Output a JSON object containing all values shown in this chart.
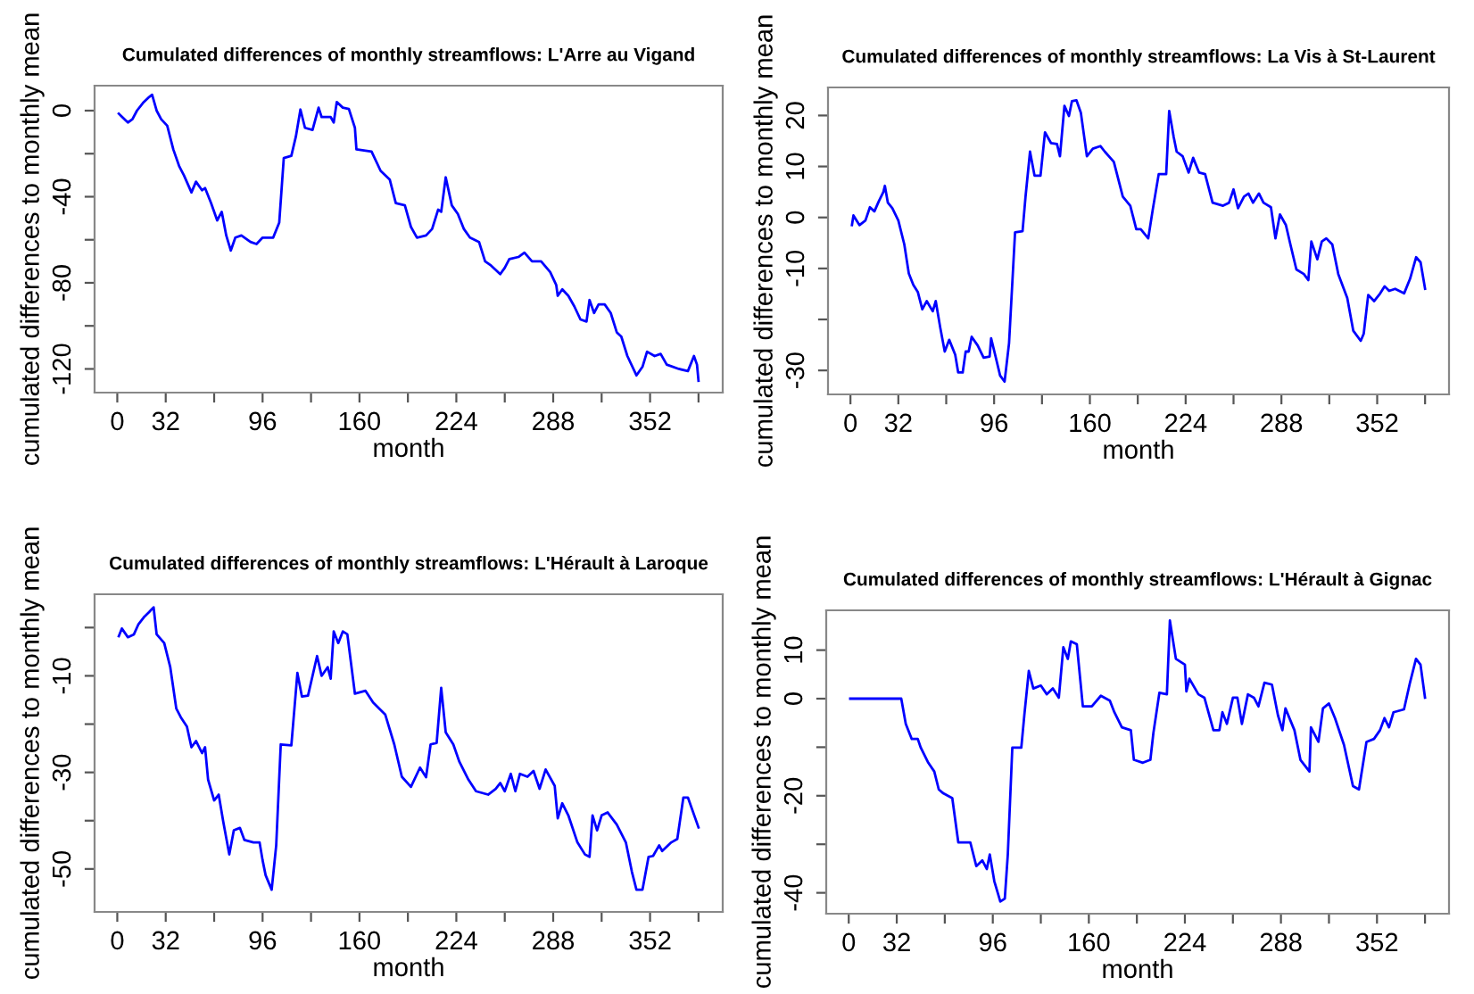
{
  "chart_data": [
    {
      "type": "line",
      "title": "Cumulated differences of monthly streamflows: L'Arre au Vigand",
      "xlabel": "month",
      "ylabel": "cumulated differences to monthly mean",
      "xlim": [
        -15,
        400
      ],
      "ylim": [
        -131,
        11.6
      ],
      "xticks": [
        0,
        32,
        {
          "value": 64,
          "label": null
        },
        96,
        {
          "value": 128,
          "label": null
        },
        160,
        {
          "value": 192,
          "label": null
        },
        224,
        {
          "value": 256,
          "label": null
        },
        288,
        {
          "value": 320,
          "label": null
        },
        352,
        {
          "value": 384,
          "label": null
        }
      ],
      "yticks": [
        0,
        {
          "value": -20,
          "label": null
        },
        -40,
        {
          "value": -60,
          "label": null
        },
        -80,
        {
          "value": -100,
          "label": null
        },
        -120
      ],
      "grid": false,
      "legend": false,
      "series": [
        {
          "color": "#0000ff",
          "x": [
            1,
            3,
            7,
            10,
            13,
            17,
            21,
            23,
            26,
            29,
            33,
            37,
            41,
            44,
            49,
            52,
            56,
            58,
            62,
            66,
            69,
            72,
            75,
            78,
            82,
            88,
            92,
            96,
            103,
            107,
            110,
            115,
            118,
            121,
            124,
            129,
            133,
            135,
            141,
            143,
            145,
            149,
            153,
            157,
            158,
            168,
            174,
            180,
            184,
            190,
            194,
            198,
            204,
            208,
            212,
            214,
            217,
            221,
            225,
            229,
            233,
            239,
            243,
            247,
            253,
            256,
            259,
            265,
            269,
            274,
            280,
            286,
            290,
            291,
            294,
            298,
            302,
            306,
            310,
            312,
            315,
            318,
            322,
            326,
            330,
            333,
            337,
            343,
            347,
            350,
            355,
            359,
            363,
            371,
            377,
            381,
            383,
            384
          ],
          "values": [
            -1.4,
            -2.8,
            -5.5,
            -4,
            0,
            3.6,
            6.3,
            7.4,
            0,
            -4,
            -7,
            -18,
            -26,
            -30,
            -38,
            -33,
            -37,
            -36,
            -43,
            -51,
            -47,
            -58,
            -65,
            -59,
            -58,
            -61,
            -62,
            -59,
            -59,
            -52,
            -22,
            -21,
            -12,
            0.5,
            -8,
            -9,
            1.4,
            -3,
            -3,
            -5.5,
            4,
            1.4,
            0.8,
            -8,
            -18,
            -19,
            -28,
            -32,
            -43,
            -44,
            -54,
            -59,
            -58,
            -55,
            -46,
            -47,
            -31,
            -44,
            -48,
            -55,
            -59,
            -61,
            -70,
            -72,
            -76,
            -73,
            -69,
            -68,
            -66,
            -70,
            -70,
            -75,
            -81,
            -86,
            -83,
            -86,
            -91,
            -97,
            -98,
            -88,
            -94,
            -90,
            -90,
            -94,
            -103,
            -105,
            -114,
            -123,
            -119,
            -112,
            -114,
            -113,
            -118,
            -120,
            -121,
            -114,
            -118,
            -125.5
          ]
        }
      ]
    },
    {
      "type": "line",
      "title": "Cumulated differences of monthly streamflows: La Vis à St-Laurent",
      "xlabel": "month",
      "ylabel": "cumulated differences to monthly mean",
      "xlim": [
        -15,
        400
      ],
      "ylim": [
        -34.7,
        25.5
      ],
      "xticks": [
        0,
        32,
        {
          "value": 64,
          "label": null
        },
        96,
        {
          "value": 128,
          "label": null
        },
        160,
        {
          "value": 192,
          "label": null
        },
        224,
        {
          "value": 256,
          "label": null
        },
        288,
        {
          "value": 320,
          "label": null
        },
        352,
        {
          "value": 384,
          "label": null
        }
      ],
      "yticks": [
        20,
        10,
        0,
        -10,
        {
          "value": -20,
          "label": null
        },
        -30
      ],
      "grid": false,
      "legend": false,
      "series": [
        {
          "color": "#0000ff",
          "x": [
            1,
            2,
            6,
            10,
            13,
            16,
            19,
            22,
            23,
            25,
            28,
            32,
            36,
            39,
            42,
            45,
            48,
            51,
            55,
            57,
            60,
            63,
            66,
            70,
            72,
            75,
            77,
            79,
            81,
            85,
            89,
            93,
            94,
            97,
            100,
            103,
            106,
            110,
            115,
            117,
            120,
            123,
            127,
            130,
            134,
            138,
            140,
            143,
            146,
            148,
            151,
            154,
            158,
            162,
            167,
            170,
            176,
            182,
            187,
            191,
            194,
            199,
            202,
            206,
            211,
            213,
            216,
            218,
            222,
            226,
            229,
            233,
            237,
            242,
            249,
            253,
            256,
            259,
            263,
            266,
            269,
            273,
            276,
            281,
            284,
            287,
            291,
            294,
            298,
            303,
            306,
            308,
            312,
            315,
            318,
            322,
            326,
            332,
            336,
            341,
            343,
            346,
            350,
            354,
            357,
            360,
            364,
            370,
            374,
            378,
            381,
            384
          ],
          "values": [
            -1.5,
            0.4,
            -1.5,
            -0.6,
            2,
            1.2,
            3.2,
            5,
            6.2,
            2.9,
            1.8,
            -0.6,
            -5.3,
            -11,
            -13.2,
            -14.6,
            -18,
            -16.4,
            -18.4,
            -16.4,
            -21.6,
            -26.3,
            -24,
            -26.9,
            -30.4,
            -30.4,
            -26.3,
            -26.3,
            -23.4,
            -25.1,
            -27.5,
            -27.3,
            -23.7,
            -27.3,
            -31,
            -32.2,
            -24.6,
            -2.9,
            -2.7,
            4.1,
            12.9,
            8.2,
            8.2,
            16.7,
            14.6,
            14.4,
            12,
            21.9,
            19.9,
            22.8,
            23,
            20.5,
            12,
            13.5,
            14,
            12.9,
            10.9,
            4.1,
            2.3,
            -2.3,
            -2.3,
            -4.1,
            1.5,
            8.5,
            8.5,
            20.9,
            15.8,
            12.9,
            12,
            8.8,
            11.7,
            8.8,
            8.5,
            2.9,
            2.3,
            2.9,
            5.5,
            1.8,
            4.1,
            4.7,
            2.9,
            4.7,
            2.9,
            2,
            -4.1,
            0.6,
            -1.5,
            -5.3,
            -10.2,
            -11.1,
            -12.3,
            -4.7,
            -8.2,
            -4.7,
            -4.1,
            -5.3,
            -11.1,
            -15.8,
            -22.2,
            -24.2,
            -22.8,
            -15.2,
            -16.4,
            -14.9,
            -13.5,
            -14.4,
            -14,
            -14.9,
            -12,
            -7.8,
            -8.8,
            -14
          ]
        }
      ]
    },
    {
      "type": "line",
      "title": "Cumulated differences of monthly streamflows: L'Hérault à Laroque",
      "xlabel": "month",
      "ylabel": "cumulated differences to monthly mean",
      "xlim": [
        -15,
        400
      ],
      "ylim": [
        -58.9,
        6.9
      ],
      "xticks": [
        0,
        32,
        {
          "value": 64,
          "label": null
        },
        96,
        {
          "value": 128,
          "label": null
        },
        160,
        {
          "value": 192,
          "label": null
        },
        224,
        {
          "value": 256,
          "label": null
        },
        288,
        {
          "value": 320,
          "label": null
        },
        352,
        {
          "value": 384,
          "label": null
        }
      ],
      "yticks": [
        {
          "value": 0,
          "label": null
        },
        -10,
        {
          "value": -20,
          "label": null
        },
        -30,
        {
          "value": -40,
          "label": null
        },
        -50
      ],
      "grid": false,
      "legend": false,
      "series": [
        {
          "color": "#0000ff",
          "x": [
            1,
            3,
            7,
            11,
            14,
            18,
            21,
            24,
            26,
            31,
            35,
            39,
            42,
            46,
            49,
            52,
            56,
            58,
            60,
            64,
            67,
            70,
            74,
            77,
            81,
            84,
            90,
            94,
            96,
            98,
            102,
            105,
            108,
            115,
            119,
            122,
            126,
            132,
            135,
            139,
            141,
            143,
            146,
            149,
            152,
            157,
            164,
            169,
            177,
            183,
            188,
            194,
            200,
            204,
            207,
            211,
            214,
            217,
            222,
            226,
            232,
            237,
            245,
            250,
            253,
            256,
            260,
            263,
            266,
            271,
            275,
            279,
            283,
            289,
            291,
            294,
            298,
            304,
            309,
            312,
            314,
            317,
            320,
            324,
            330,
            336,
            340,
            343,
            347,
            351,
            354,
            358,
            360,
            366,
            370,
            374,
            377,
            384
          ],
          "values": [
            -1.8,
            -0.2,
            -2,
            -1.4,
            0.7,
            2.3,
            3.2,
            4.2,
            -1.4,
            -3.2,
            -8.2,
            -16.8,
            -18.6,
            -20.5,
            -24.8,
            -23.5,
            -26,
            -24.8,
            -31.5,
            -35.8,
            -34.6,
            -40.2,
            -47,
            -42,
            -41.5,
            -44,
            -44.5,
            -44.5,
            -48.2,
            -51.3,
            -54.3,
            -45.1,
            -24.2,
            -24.4,
            -9.4,
            -14.3,
            -14.1,
            -5.9,
            -10,
            -8.2,
            -10.6,
            -0.8,
            -3.2,
            -0.8,
            -1.4,
            -13.7,
            -13.1,
            -15.5,
            -18,
            -24.2,
            -30.9,
            -33,
            -29,
            -31,
            -24.2,
            -23.9,
            -12.5,
            -21.7,
            -24.2,
            -27.8,
            -31.5,
            -33.9,
            -34.6,
            -33.4,
            -32.2,
            -33.9,
            -30.3,
            -33.9,
            -30.3,
            -30.9,
            -29.7,
            -33.4,
            -29.4,
            -32.8,
            -39.5,
            -36.4,
            -38.9,
            -44.5,
            -47,
            -47.5,
            -38.9,
            -42,
            -38.9,
            -38.3,
            -40.8,
            -44.5,
            -50.6,
            -54.3,
            -54.3,
            -47.5,
            -47.3,
            -45.1,
            -46.3,
            -44.5,
            -43.8,
            -35.2,
            -35.2,
            -41.4
          ]
        }
      ]
    },
    {
      "type": "line",
      "title": "Cumulated differences of monthly streamflows: L'Hérault à Gignac",
      "xlabel": "month",
      "ylabel": "cumulated differences to monthly mean",
      "xlim": [
        -15,
        400
      ],
      "ylim": [
        -44.3,
        18.2
      ],
      "xticks": [
        0,
        32,
        {
          "value": 64,
          "label": null
        },
        96,
        {
          "value": 128,
          "label": null
        },
        160,
        {
          "value": 192,
          "label": null
        },
        224,
        {
          "value": 256,
          "label": null
        },
        288,
        {
          "value": 320,
          "label": null
        },
        352,
        {
          "value": 384,
          "label": null
        }
      ],
      "yticks": [
        10,
        0,
        {
          "value": -10,
          "label": null
        },
        -20,
        {
          "value": -30,
          "label": null
        },
        -40
      ],
      "grid": false,
      "legend": false,
      "series": [
        {
          "color": "#0000ff",
          "x": [
            1,
            35,
            38,
            42,
            46,
            48,
            53,
            57,
            60,
            63,
            69,
            73,
            81,
            85,
            89,
            92,
            94,
            97,
            101,
            104,
            106,
            109,
            115,
            117,
            120,
            123,
            128,
            132,
            136,
            140,
            143,
            146,
            148,
            152,
            156,
            162,
            168,
            174,
            177,
            182,
            188,
            190,
            196,
            201,
            203,
            207,
            212,
            214,
            218,
            224,
            225,
            227,
            233,
            237,
            243,
            247,
            249,
            252,
            256,
            259,
            262,
            266,
            270,
            273,
            277,
            282,
            286,
            289,
            291,
            297,
            301,
            307,
            308,
            313,
            316,
            320,
            324,
            330,
            336,
            340,
            345,
            350,
            354,
            357,
            360,
            363,
            370,
            374,
            378,
            381,
            384
          ],
          "values": [
            0,
            0,
            -5.2,
            -8.3,
            -8.3,
            -10.1,
            -13.2,
            -15,
            -18.7,
            -19.5,
            -20.5,
            -29.6,
            -29.6,
            -34.5,
            -33.3,
            -35.1,
            -32.1,
            -37.6,
            -41.8,
            -41.2,
            -32.1,
            -10.1,
            -10.1,
            -3.4,
            5.7,
            2.1,
            2.7,
            0.9,
            2.1,
            0.2,
            10.6,
            8.2,
            11.8,
            11.2,
            -1.6,
            -1.6,
            0.6,
            -0.4,
            -2.8,
            -5.9,
            -6.5,
            -12.6,
            -13.2,
            -12.6,
            -7.1,
            1.2,
            0.9,
            16.1,
            8.2,
            7,
            1.5,
            4.1,
            0.9,
            0.2,
            -6.5,
            -6.5,
            -2.8,
            -5.2,
            0.2,
            0.2,
            -5.2,
            0.9,
            0.2,
            -1.6,
            3.3,
            2.9,
            -3.4,
            -6.5,
            -2,
            -6.5,
            -12.6,
            -15,
            -5.9,
            -8.9,
            -2,
            -1,
            -4,
            -9.5,
            -18,
            -18.7,
            -8.9,
            -8.3,
            -6.5,
            -4,
            -5.9,
            -2.8,
            -2.2,
            3.3,
            8.2,
            7,
            0.2
          ]
        }
      ]
    }
  ]
}
